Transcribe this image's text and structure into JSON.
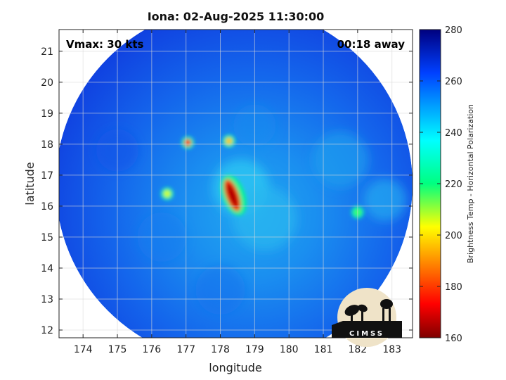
{
  "title": "Iona: 02-Aug-2025 11:30:00",
  "annotations": {
    "vmax": "Vmax: 30 kts",
    "time_away": "00:18 away"
  },
  "logo_text": "CIMSS",
  "chart_data": {
    "type": "heatmap",
    "xlabel": "longitude",
    "ylabel": "latitude",
    "xlim": [
      173.3,
      183.6
    ],
    "ylim": [
      11.75,
      21.7
    ],
    "x_ticks": [
      174,
      175,
      176,
      177,
      178,
      179,
      180,
      181,
      182,
      183
    ],
    "y_ticks": [
      12,
      13,
      14,
      15,
      16,
      17,
      18,
      19,
      20,
      21
    ],
    "grid": true,
    "colorbar": {
      "label": "Brightness Temp - Horizontal Polarization",
      "min": 160,
      "max": 280,
      "ticks": [
        160,
        180,
        200,
        220,
        240,
        260,
        280
      ],
      "colormap": "jet"
    },
    "swath": {
      "center_lon": 178.4,
      "center_lat": 16.7,
      "radius_deg": 5.2
    },
    "features": [
      {
        "name": "central-convection-band",
        "lon": 178.35,
        "lat": 16.35,
        "min_tb": 165
      },
      {
        "name": "north-cell",
        "lon": 177.05,
        "lat": 18.05,
        "min_tb": 170
      },
      {
        "name": "north-east-cell",
        "lon": 178.25,
        "lat": 18.1,
        "min_tb": 190
      },
      {
        "name": "west-cell",
        "lon": 176.45,
        "lat": 16.4,
        "min_tb": 200
      },
      {
        "name": "east-cell",
        "lon": 182.0,
        "lat": 15.8,
        "min_tb": 210
      }
    ]
  },
  "colors": {
    "background": "#ffffff",
    "axis": "#222222",
    "grid": "#d9d9d9",
    "logo_bg": "#efe3c8",
    "logo_dark": "#111111"
  }
}
